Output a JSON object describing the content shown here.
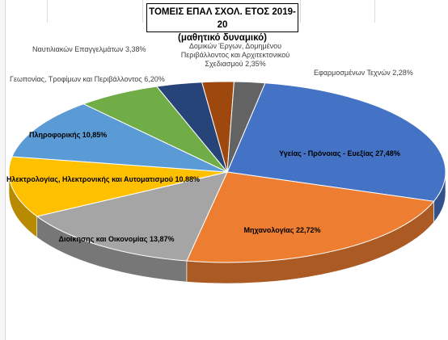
{
  "chart_data": {
    "type": "pie",
    "style": "3d-exploded-none",
    "title_line1": "ΤΟΜΕΙΣ ΕΠΑΛ ΣΧΟΛ. ΕΤΟΣ 2019-20",
    "title_line2": "(μαθητικό δυναμικό)",
    "slices": [
      {
        "label": "Υγείας - Πρόνοιας - Ευεξίας 27,48%",
        "value": 27.48,
        "color": "#4472c4",
        "label_inside": true
      },
      {
        "label": "Μηχανολογίας 22,72%",
        "value": 22.72,
        "color": "#ed7d31",
        "label_inside": true
      },
      {
        "label": "Διοίκησης και Οικονομίας 13,87%",
        "value": 13.87,
        "color": "#a5a5a5",
        "label_inside": true
      },
      {
        "label": "Ηλεκτρολογίας, Ηλεκτρονικής και Αυτοματισμού 10,88%",
        "value": 10.88,
        "color": "#ffc000",
        "label_inside": true
      },
      {
        "label": "Πληροφορικής 10,85%",
        "value": 10.85,
        "color": "#5b9bd5",
        "label_inside": true
      },
      {
        "label": "Γεωπονίας, Τροφίμων και Περιβάλλοντος 6,20%",
        "value": 6.2,
        "color": "#70ad47",
        "label_inside": false
      },
      {
        "label": "Ναυτιλιακών Επαγγελμάτων 3,38%",
        "value": 3.38,
        "color": "#264478",
        "label_inside": false
      },
      {
        "label": "Δομικών Έργων, Δομημένου Περιβάλλοντος και Αρχιτεκτονικού Σχεδιασμού 2,35%",
        "value": 2.35,
        "color": "#9e480e",
        "label_inside": false
      },
      {
        "label": "Εφαρμοσμένων Τεχνών 2,28%",
        "value": 2.28,
        "color": "#636363",
        "label_inside": false
      }
    ],
    "legend": "none",
    "data_labels": "category-and-percent"
  }
}
